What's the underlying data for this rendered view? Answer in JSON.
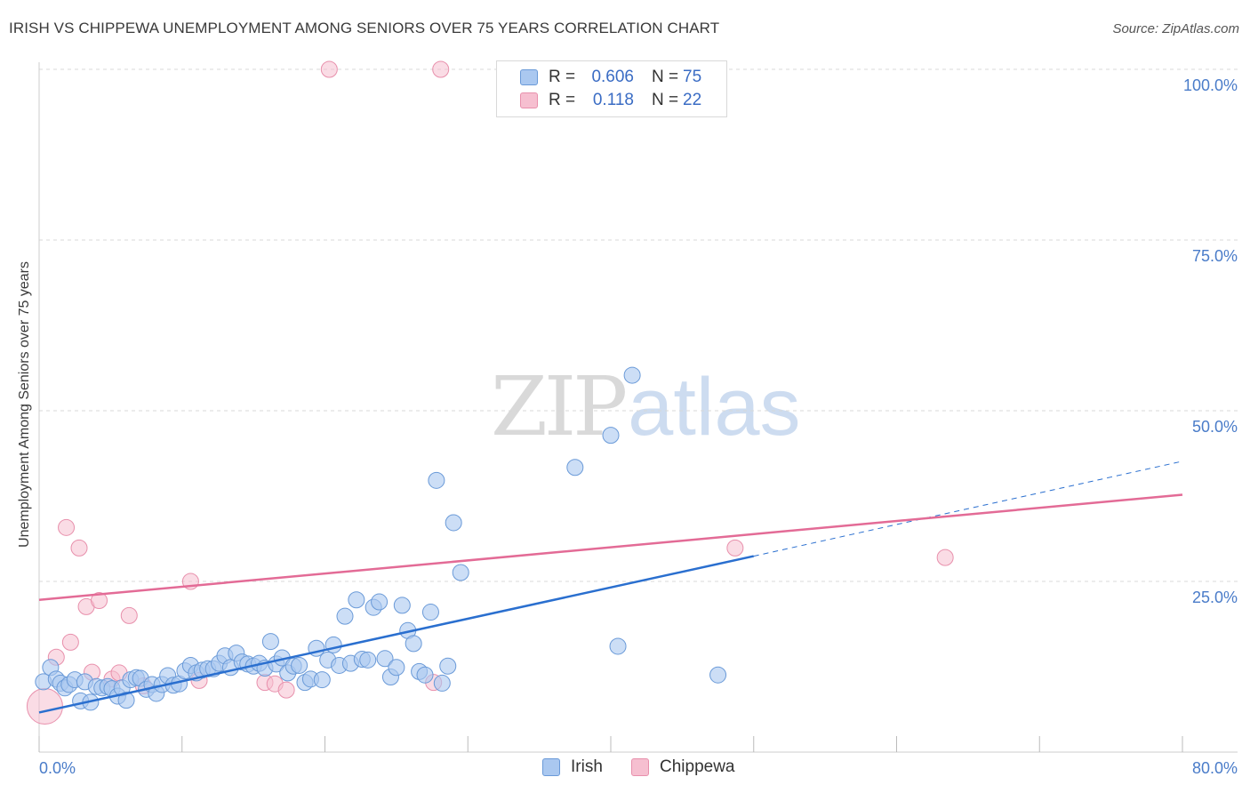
{
  "title": "IRISH VS CHIPPEWA UNEMPLOYMENT AMONG SENIORS OVER 75 YEARS CORRELATION CHART",
  "source": "Source: ZipAtlas.com",
  "watermark": {
    "part1": "ZIP",
    "part2": "atlas"
  },
  "legend": {
    "irish": {
      "r_label": "R =",
      "r_value": "0.606",
      "n_label": "N =",
      "n_value": "75"
    },
    "chippewa": {
      "r_label": "R =",
      "r_value": "0.118",
      "n_label": "N =",
      "n_value": "22"
    }
  },
  "bottom_legend": {
    "irish": "Irish",
    "chippewa": "Chippewa"
  },
  "colors": {
    "irish_fill": "#aac8f0",
    "irish_stroke": "#6a9ad8",
    "irish_line": "#2a6fcf",
    "chippewa_fill": "#f6bfd0",
    "chippewa_stroke": "#e890ac",
    "chippewa_line": "#e36b96",
    "grid": "#d8d8d8",
    "tick_text": "#4a7cc9"
  },
  "chart_data": {
    "type": "scatter",
    "title": "IRISH VS CHIPPEWA UNEMPLOYMENT AMONG SENIORS OVER 75 YEARS CORRELATION CHART",
    "xlabel": "",
    "ylabel": "Unemployment Among Seniors over 75 years",
    "xlim": [
      0,
      80
    ],
    "ylim": [
      0,
      100
    ],
    "x_tick_labels": [
      {
        "value": 0,
        "label": "0.0%"
      },
      {
        "value": 80,
        "label": "80.0%"
      }
    ],
    "y_tick_labels": [
      {
        "value": 25,
        "label": "25.0%"
      },
      {
        "value": 50,
        "label": "50.0%"
      },
      {
        "value": 75,
        "label": "75.0%"
      },
      {
        "value": 100,
        "label": "100.0%"
      }
    ],
    "series": [
      {
        "name": "Irish",
        "r": 0.606,
        "n": 75,
        "trend": {
          "x0": 0,
          "y0": 5.8,
          "x1": 50,
          "y1": 28.7,
          "dashed_to_x": 80,
          "dashed_to_y": 42.6
        },
        "points": [
          [
            0.3,
            10.3
          ],
          [
            0.8,
            12.4
          ],
          [
            1.2,
            10.7
          ],
          [
            1.5,
            10.1
          ],
          [
            1.8,
            9.4
          ],
          [
            2.1,
            9.9
          ],
          [
            2.5,
            10.6
          ],
          [
            2.9,
            7.5
          ],
          [
            3.2,
            10.3
          ],
          [
            3.6,
            7.3
          ],
          [
            4.0,
            9.6
          ],
          [
            4.4,
            9.4
          ],
          [
            4.8,
            9.6
          ],
          [
            5.1,
            9.3
          ],
          [
            5.5,
            8.2
          ],
          [
            5.8,
            9.4
          ],
          [
            6.1,
            7.6
          ],
          [
            6.4,
            10.6
          ],
          [
            6.8,
            10.9
          ],
          [
            7.1,
            10.8
          ],
          [
            7.5,
            9.2
          ],
          [
            7.9,
            9.9
          ],
          [
            8.2,
            8.6
          ],
          [
            8.6,
            9.9
          ],
          [
            9.0,
            11.2
          ],
          [
            9.4,
            9.8
          ],
          [
            9.8,
            10.0
          ],
          [
            10.2,
            11.9
          ],
          [
            10.6,
            12.7
          ],
          [
            11.0,
            11.6
          ],
          [
            11.4,
            12.0
          ],
          [
            11.8,
            12.2
          ],
          [
            12.2,
            12.2
          ],
          [
            12.6,
            13.0
          ],
          [
            13.0,
            14.1
          ],
          [
            13.4,
            12.4
          ],
          [
            13.8,
            14.5
          ],
          [
            14.2,
            13.2
          ],
          [
            14.6,
            12.9
          ],
          [
            15.0,
            12.6
          ],
          [
            15.4,
            13.0
          ],
          [
            15.8,
            12.3
          ],
          [
            16.2,
            16.2
          ],
          [
            16.6,
            12.9
          ],
          [
            17.0,
            13.8
          ],
          [
            17.4,
            11.6
          ],
          [
            17.8,
            12.6
          ],
          [
            18.2,
            12.7
          ],
          [
            18.6,
            10.2
          ],
          [
            19.0,
            10.7
          ],
          [
            19.4,
            15.2
          ],
          [
            19.8,
            10.6
          ],
          [
            20.2,
            13.5
          ],
          [
            20.6,
            15.7
          ],
          [
            21.0,
            12.7
          ],
          [
            21.4,
            19.9
          ],
          [
            21.8,
            13.0
          ],
          [
            22.2,
            22.3
          ],
          [
            22.6,
            13.6
          ],
          [
            23.0,
            13.5
          ],
          [
            23.4,
            21.2
          ],
          [
            23.8,
            22.0
          ],
          [
            24.2,
            13.7
          ],
          [
            24.6,
            11.0
          ],
          [
            25.0,
            12.4
          ],
          [
            25.4,
            21.5
          ],
          [
            25.8,
            17.8
          ],
          [
            26.2,
            15.9
          ],
          [
            26.6,
            11.8
          ],
          [
            27.0,
            11.3
          ],
          [
            27.4,
            20.5
          ],
          [
            27.8,
            39.8
          ],
          [
            28.2,
            10.1
          ],
          [
            28.6,
            12.6
          ],
          [
            29.0,
            33.6
          ]
        ],
        "extra_points": [
          [
            29.5,
            26.3
          ],
          [
            37.5,
            41.7
          ],
          [
            40.0,
            46.4
          ],
          [
            40.5,
            15.5
          ],
          [
            41.5,
            55.2
          ],
          [
            47.5,
            11.3
          ]
        ]
      },
      {
        "name": "Chippewa",
        "r": 0.118,
        "n": 22,
        "trend": {
          "x0": 0,
          "y0": 22.3,
          "x1": 80,
          "y1": 37.7
        },
        "points": [
          [
            0.4,
            6.7
          ],
          [
            1.2,
            13.9
          ],
          [
            1.9,
            32.9
          ],
          [
            2.2,
            16.1
          ],
          [
            2.8,
            29.9
          ],
          [
            3.3,
            21.3
          ],
          [
            3.7,
            11.7
          ],
          [
            4.2,
            22.2
          ],
          [
            5.1,
            10.7
          ],
          [
            5.6,
            11.6
          ],
          [
            6.3,
            20.0
          ],
          [
            7.3,
            9.7
          ],
          [
            10.6,
            25.0
          ],
          [
            11.2,
            10.5
          ],
          [
            15.8,
            10.2
          ],
          [
            16.5,
            10.0
          ],
          [
            17.3,
            9.1
          ],
          [
            20.3,
            100.0
          ],
          [
            27.6,
            10.2
          ],
          [
            28.1,
            100.0
          ],
          [
            48.7,
            29.9
          ],
          [
            63.4,
            28.5
          ]
        ]
      }
    ]
  }
}
